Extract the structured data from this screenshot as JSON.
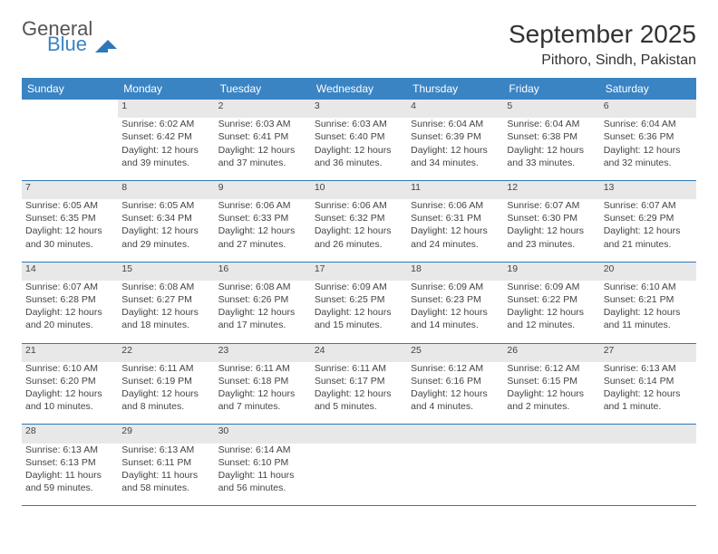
{
  "brand": {
    "general": "General",
    "blue": "Blue"
  },
  "title": "September 2025",
  "location": "Pithoro, Sindh, Pakistan",
  "calendar": {
    "header_bg": "#3a84c4",
    "header_fg": "#ffffff",
    "daybar_bg": "#e8e8e8",
    "rule_color": "#2f78b8",
    "text_color": "#444444",
    "font_size_body": 10.5,
    "font_size_header": 12,
    "days": [
      "Sunday",
      "Monday",
      "Tuesday",
      "Wednesday",
      "Thursday",
      "Friday",
      "Saturday"
    ],
    "weeks": [
      [
        null,
        {
          "n": "1",
          "sr": "Sunrise: 6:02 AM",
          "ss": "Sunset: 6:42 PM",
          "dl": "Daylight: 12 hours and 39 minutes."
        },
        {
          "n": "2",
          "sr": "Sunrise: 6:03 AM",
          "ss": "Sunset: 6:41 PM",
          "dl": "Daylight: 12 hours and 37 minutes."
        },
        {
          "n": "3",
          "sr": "Sunrise: 6:03 AM",
          "ss": "Sunset: 6:40 PM",
          "dl": "Daylight: 12 hours and 36 minutes."
        },
        {
          "n": "4",
          "sr": "Sunrise: 6:04 AM",
          "ss": "Sunset: 6:39 PM",
          "dl": "Daylight: 12 hours and 34 minutes."
        },
        {
          "n": "5",
          "sr": "Sunrise: 6:04 AM",
          "ss": "Sunset: 6:38 PM",
          "dl": "Daylight: 12 hours and 33 minutes."
        },
        {
          "n": "6",
          "sr": "Sunrise: 6:04 AM",
          "ss": "Sunset: 6:36 PM",
          "dl": "Daylight: 12 hours and 32 minutes."
        }
      ],
      [
        {
          "n": "7",
          "sr": "Sunrise: 6:05 AM",
          "ss": "Sunset: 6:35 PM",
          "dl": "Daylight: 12 hours and 30 minutes."
        },
        {
          "n": "8",
          "sr": "Sunrise: 6:05 AM",
          "ss": "Sunset: 6:34 PM",
          "dl": "Daylight: 12 hours and 29 minutes."
        },
        {
          "n": "9",
          "sr": "Sunrise: 6:06 AM",
          "ss": "Sunset: 6:33 PM",
          "dl": "Daylight: 12 hours and 27 minutes."
        },
        {
          "n": "10",
          "sr": "Sunrise: 6:06 AM",
          "ss": "Sunset: 6:32 PM",
          "dl": "Daylight: 12 hours and 26 minutes."
        },
        {
          "n": "11",
          "sr": "Sunrise: 6:06 AM",
          "ss": "Sunset: 6:31 PM",
          "dl": "Daylight: 12 hours and 24 minutes."
        },
        {
          "n": "12",
          "sr": "Sunrise: 6:07 AM",
          "ss": "Sunset: 6:30 PM",
          "dl": "Daylight: 12 hours and 23 minutes."
        },
        {
          "n": "13",
          "sr": "Sunrise: 6:07 AM",
          "ss": "Sunset: 6:29 PM",
          "dl": "Daylight: 12 hours and 21 minutes."
        }
      ],
      [
        {
          "n": "14",
          "sr": "Sunrise: 6:07 AM",
          "ss": "Sunset: 6:28 PM",
          "dl": "Daylight: 12 hours and 20 minutes."
        },
        {
          "n": "15",
          "sr": "Sunrise: 6:08 AM",
          "ss": "Sunset: 6:27 PM",
          "dl": "Daylight: 12 hours and 18 minutes."
        },
        {
          "n": "16",
          "sr": "Sunrise: 6:08 AM",
          "ss": "Sunset: 6:26 PM",
          "dl": "Daylight: 12 hours and 17 minutes."
        },
        {
          "n": "17",
          "sr": "Sunrise: 6:09 AM",
          "ss": "Sunset: 6:25 PM",
          "dl": "Daylight: 12 hours and 15 minutes."
        },
        {
          "n": "18",
          "sr": "Sunrise: 6:09 AM",
          "ss": "Sunset: 6:23 PM",
          "dl": "Daylight: 12 hours and 14 minutes."
        },
        {
          "n": "19",
          "sr": "Sunrise: 6:09 AM",
          "ss": "Sunset: 6:22 PM",
          "dl": "Daylight: 12 hours and 12 minutes."
        },
        {
          "n": "20",
          "sr": "Sunrise: 6:10 AM",
          "ss": "Sunset: 6:21 PM",
          "dl": "Daylight: 12 hours and 11 minutes."
        }
      ],
      [
        {
          "n": "21",
          "sr": "Sunrise: 6:10 AM",
          "ss": "Sunset: 6:20 PM",
          "dl": "Daylight: 12 hours and 10 minutes."
        },
        {
          "n": "22",
          "sr": "Sunrise: 6:11 AM",
          "ss": "Sunset: 6:19 PM",
          "dl": "Daylight: 12 hours and 8 minutes."
        },
        {
          "n": "23",
          "sr": "Sunrise: 6:11 AM",
          "ss": "Sunset: 6:18 PM",
          "dl": "Daylight: 12 hours and 7 minutes."
        },
        {
          "n": "24",
          "sr": "Sunrise: 6:11 AM",
          "ss": "Sunset: 6:17 PM",
          "dl": "Daylight: 12 hours and 5 minutes."
        },
        {
          "n": "25",
          "sr": "Sunrise: 6:12 AM",
          "ss": "Sunset: 6:16 PM",
          "dl": "Daylight: 12 hours and 4 minutes."
        },
        {
          "n": "26",
          "sr": "Sunrise: 6:12 AM",
          "ss": "Sunset: 6:15 PM",
          "dl": "Daylight: 12 hours and 2 minutes."
        },
        {
          "n": "27",
          "sr": "Sunrise: 6:13 AM",
          "ss": "Sunset: 6:14 PM",
          "dl": "Daylight: 12 hours and 1 minute."
        }
      ],
      [
        {
          "n": "28",
          "sr": "Sunrise: 6:13 AM",
          "ss": "Sunset: 6:13 PM",
          "dl": "Daylight: 11 hours and 59 minutes."
        },
        {
          "n": "29",
          "sr": "Sunrise: 6:13 AM",
          "ss": "Sunset: 6:11 PM",
          "dl": "Daylight: 11 hours and 58 minutes."
        },
        {
          "n": "30",
          "sr": "Sunrise: 6:14 AM",
          "ss": "Sunset: 6:10 PM",
          "dl": "Daylight: 11 hours and 56 minutes."
        },
        null,
        null,
        null,
        null
      ]
    ]
  }
}
